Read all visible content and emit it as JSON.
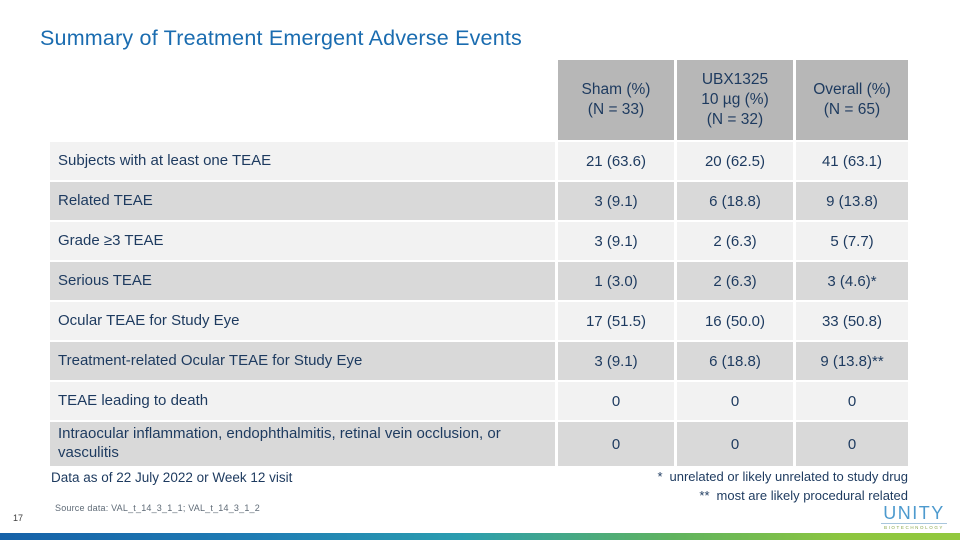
{
  "slide": {
    "title": "Summary of Treatment Emergent Adverse Events",
    "page_number": "17"
  },
  "table": {
    "columns": [
      "Sham (%)\n(N = 33)",
      "UBX1325\n10 µg (%)\n(N = 32)",
      "Overall (%)\n(N = 65)"
    ],
    "rows": [
      {
        "label": "Subjects with at least one TEAE",
        "values": [
          "21 (63.6)",
          "20 (62.5)",
          "41 (63.1)"
        ]
      },
      {
        "label": "Related TEAE",
        "values": [
          "3 (9.1)",
          "6 (18.8)",
          "9 (13.8)"
        ]
      },
      {
        "label": "Grade ≥3 TEAE",
        "values": [
          "3 (9.1)",
          "2 (6.3)",
          "5 (7.7)"
        ]
      },
      {
        "label": "Serious TEAE",
        "values": [
          "1 (3.0)",
          "2 (6.3)",
          "3 (4.6)*"
        ]
      },
      {
        "label": "Ocular TEAE for Study Eye",
        "values": [
          "17 (51.5)",
          "16 (50.0)",
          "33 (50.8)"
        ]
      },
      {
        "label": "Treatment-related Ocular TEAE for Study Eye",
        "values": [
          "3 (9.1)",
          "6 (18.8)",
          "9 (13.8)**"
        ]
      },
      {
        "label": "TEAE leading to death",
        "values": [
          "0",
          "0",
          "0"
        ]
      },
      {
        "label": "Intraocular inflammation, endophthalmitis, retinal vein occlusion, or vasculitis",
        "values": [
          "0",
          "0",
          "0"
        ]
      }
    ]
  },
  "footer": {
    "data_note": "Data as of 22 July 2022 or Week 12 visit",
    "footnotes": [
      {
        "marker": "*",
        "text": "unrelated or likely unrelated to study drug"
      },
      {
        "marker": "**",
        "text": "most are likely procedural related"
      }
    ],
    "source": "Source data: VAL_t_14_3_1_1; VAL_t_14_3_1_2"
  },
  "logo": {
    "name": "UNITY",
    "sub": "BIOTECHNOLOGY"
  },
  "colors": {
    "title_blue": "#1a6cb0",
    "table_text_navy": "#1d3a5f",
    "header_bg": "#b7b7b7",
    "row_light_bg": "#f2f2f2",
    "row_dark_bg": "#d9d9d9",
    "logo_blue": "#4d9ace",
    "logo_green": "#8aa84e",
    "bar_gradient_left": "#1561a8",
    "bar_gradient_mid": "#2a9daf",
    "bar_gradient_right": "#8dc63f"
  }
}
